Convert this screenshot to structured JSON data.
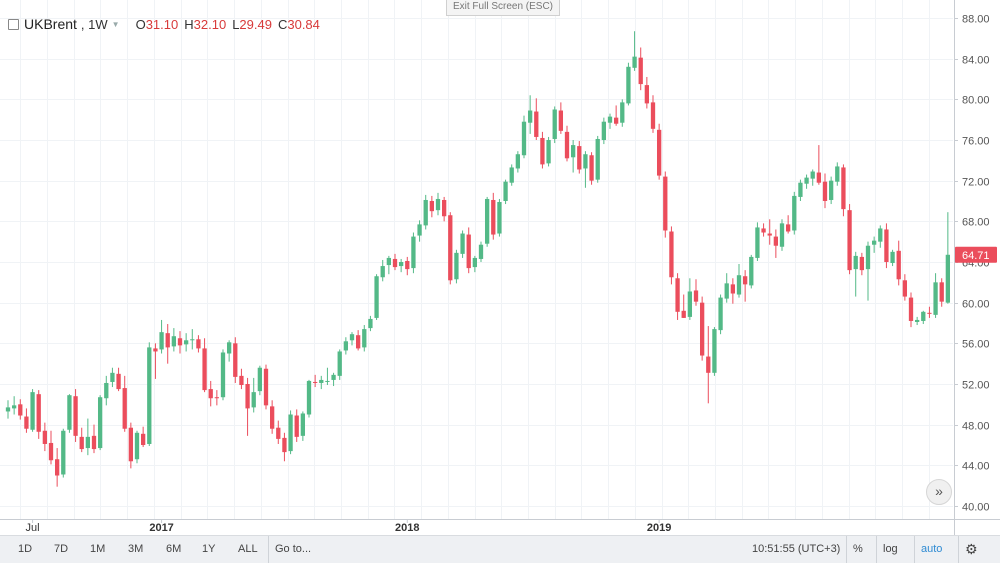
{
  "legend": {
    "symbol": "UKBrent",
    "timeframe": ", 1W",
    "open_label": "O",
    "open_value": "31.10",
    "high_label": "H",
    "high_value": "32.10",
    "low_label": "L",
    "low_value": "29.49",
    "close_label": "C",
    "close_value": "30.84"
  },
  "exit_fullscreen": "Exit Full Screen (ESC)",
  "last_price_label": "64.71",
  "toolbar": {
    "ranges": [
      "1D",
      "7D",
      "1M",
      "3M",
      "6M",
      "1Y",
      "ALL"
    ],
    "goto": "Go to...",
    "time": "10:51:55 (UTC+3)",
    "percent": "%",
    "log": "log",
    "auto": "auto",
    "settings_icon": "gear-icon"
  },
  "nav_icon": "chevrons-right-icon",
  "colors": {
    "up": "#53b987",
    "down": "#eb4d5c",
    "grid": "#f0f3f6",
    "last_price_bg": "#eb4d5c"
  },
  "chart_data": {
    "type": "candlestick",
    "y_ticks": [
      "88.00",
      "84.00",
      "80.00",
      "76.00",
      "72.00",
      "68.00",
      "64.00",
      "60.00",
      "56.00",
      "52.00",
      "48.00",
      "44.00",
      "40.00"
    ],
    "ylim": [
      39.5,
      89.5
    ],
    "x_labels": [
      {
        "label": "Jul",
        "index": 4
      },
      {
        "label": "2017",
        "index": 25
      },
      {
        "label": "2018",
        "index": 65
      },
      {
        "label": "2019",
        "index": 106
      }
    ],
    "last_price": 64.71,
    "ohlc": [
      [
        49.3,
        50.4,
        48.6,
        49.7
      ],
      [
        49.6,
        50.8,
        49.0,
        49.9
      ],
      [
        50.0,
        50.5,
        48.5,
        48.9
      ],
      [
        48.8,
        49.6,
        47.2,
        47.6
      ],
      [
        47.5,
        51.5,
        47.3,
        51.2
      ],
      [
        51.0,
        51.4,
        46.6,
        47.3
      ],
      [
        47.4,
        48.2,
        45.4,
        46.1
      ],
      [
        46.2,
        47.4,
        44.1,
        44.5
      ],
      [
        44.6,
        45.7,
        41.9,
        43.0
      ],
      [
        43.1,
        47.6,
        42.8,
        47.4
      ],
      [
        47.5,
        51.0,
        47.2,
        50.9
      ],
      [
        50.8,
        51.5,
        46.3,
        46.9
      ],
      [
        46.8,
        47.7,
        45.3,
        45.6
      ],
      [
        45.7,
        48.6,
        45.0,
        46.8
      ],
      [
        46.9,
        48.0,
        45.2,
        45.6
      ],
      [
        45.7,
        50.9,
        45.5,
        50.7
      ],
      [
        50.6,
        52.8,
        49.9,
        52.1
      ],
      [
        52.2,
        53.6,
        51.7,
        53.1
      ],
      [
        53.0,
        53.6,
        51.3,
        51.5
      ],
      [
        51.6,
        52.8,
        47.3,
        47.6
      ],
      [
        47.7,
        48.2,
        43.7,
        44.4
      ],
      [
        44.6,
        47.4,
        44.2,
        47.2
      ],
      [
        47.1,
        47.8,
        45.8,
        46.0
      ],
      [
        46.1,
        56.1,
        45.9,
        55.6
      ],
      [
        55.5,
        56.0,
        52.5,
        55.2
      ],
      [
        55.4,
        58.3,
        55.0,
        57.1
      ],
      [
        57.0,
        57.9,
        54.0,
        55.6
      ],
      [
        55.7,
        57.5,
        55.2,
        56.7
      ],
      [
        56.5,
        57.2,
        55.0,
        55.8
      ],
      [
        55.9,
        57.0,
        55.2,
        56.3
      ],
      [
        56.3,
        57.4,
        55.4,
        56.4
      ],
      [
        56.4,
        56.8,
        55.1,
        55.5
      ],
      [
        55.5,
        56.5,
        51.2,
        51.4
      ],
      [
        51.5,
        52.3,
        49.8,
        50.6
      ],
      [
        50.7,
        51.4,
        49.9,
        50.6
      ],
      [
        50.7,
        55.4,
        50.4,
        55.1
      ],
      [
        55.0,
        56.3,
        54.2,
        56.1
      ],
      [
        56.0,
        56.6,
        52.1,
        52.7
      ],
      [
        52.8,
        53.5,
        51.5,
        51.9
      ],
      [
        52.0,
        52.6,
        46.9,
        49.6
      ],
      [
        49.7,
        52.6,
        49.2,
        51.2
      ],
      [
        51.3,
        53.8,
        50.9,
        53.6
      ],
      [
        53.5,
        53.9,
        49.5,
        49.9
      ],
      [
        49.8,
        50.4,
        47.1,
        47.6
      ],
      [
        47.7,
        48.4,
        46.1,
        46.6
      ],
      [
        46.7,
        47.2,
        44.4,
        45.3
      ],
      [
        45.4,
        49.4,
        45.1,
        49.0
      ],
      [
        48.9,
        49.5,
        46.3,
        46.8
      ],
      [
        46.9,
        49.3,
        46.4,
        49.1
      ],
      [
        49.0,
        52.4,
        48.7,
        52.3
      ],
      [
        52.2,
        52.9,
        51.7,
        52.1
      ],
      [
        52.1,
        52.8,
        51.5,
        52.4
      ],
      [
        52.3,
        53.6,
        51.9,
        52.3
      ],
      [
        52.4,
        53.1,
        51.8,
        52.9
      ],
      [
        52.8,
        55.4,
        52.4,
        55.2
      ],
      [
        55.3,
        56.6,
        54.9,
        56.2
      ],
      [
        56.3,
        57.1,
        55.8,
        56.9
      ],
      [
        56.8,
        57.3,
        55.3,
        55.5
      ],
      [
        55.6,
        57.8,
        55.2,
        57.4
      ],
      [
        57.5,
        58.7,
        57.2,
        58.4
      ],
      [
        58.5,
        62.8,
        58.3,
        62.6
      ],
      [
        62.5,
        64.2,
        62.1,
        63.6
      ],
      [
        63.7,
        64.6,
        62.8,
        64.4
      ],
      [
        64.3,
        64.8,
        63.2,
        63.5
      ],
      [
        63.6,
        64.3,
        63.0,
        64.0
      ],
      [
        64.1,
        64.5,
        62.7,
        63.3
      ],
      [
        63.4,
        66.9,
        62.9,
        66.5
      ],
      [
        66.6,
        68.1,
        66.0,
        67.7
      ],
      [
        67.6,
        70.6,
        67.2,
        70.1
      ],
      [
        70.0,
        70.5,
        68.4,
        69.0
      ],
      [
        69.1,
        70.8,
        68.6,
        70.2
      ],
      [
        70.1,
        70.4,
        68.0,
        68.5
      ],
      [
        68.6,
        68.9,
        61.8,
        62.2
      ],
      [
        62.3,
        65.2,
        61.9,
        64.9
      ],
      [
        64.8,
        67.1,
        64.4,
        66.8
      ],
      [
        66.7,
        67.4,
        62.9,
        63.4
      ],
      [
        63.5,
        64.6,
        63.0,
        64.4
      ],
      [
        64.3,
        66.0,
        64.0,
        65.7
      ],
      [
        65.8,
        70.4,
        65.5,
        70.2
      ],
      [
        70.1,
        70.8,
        66.2,
        66.7
      ],
      [
        66.8,
        70.2,
        66.5,
        69.9
      ],
      [
        70.0,
        72.1,
        69.7,
        71.9
      ],
      [
        71.8,
        73.6,
        71.5,
        73.3
      ],
      [
        73.2,
        74.9,
        72.8,
        74.6
      ],
      [
        74.5,
        78.4,
        74.2,
        77.8
      ],
      [
        77.7,
        80.4,
        76.6,
        78.9
      ],
      [
        78.8,
        80.1,
        76.0,
        76.3
      ],
      [
        76.2,
        76.8,
        73.2,
        73.6
      ],
      [
        73.7,
        76.3,
        73.4,
        76.0
      ],
      [
        76.1,
        79.3,
        75.7,
        79.0
      ],
      [
        78.9,
        79.7,
        76.6,
        76.9
      ],
      [
        76.8,
        77.4,
        73.9,
        74.2
      ],
      [
        74.3,
        76.0,
        72.8,
        75.5
      ],
      [
        75.4,
        75.9,
        72.7,
        73.1
      ],
      [
        73.2,
        74.9,
        71.3,
        74.6
      ],
      [
        74.5,
        74.8,
        71.6,
        72.0
      ],
      [
        72.1,
        76.4,
        71.8,
        76.1
      ],
      [
        76.0,
        78.2,
        75.6,
        77.8
      ],
      [
        77.7,
        78.6,
        77.1,
        78.3
      ],
      [
        78.2,
        79.4,
        77.4,
        77.6
      ],
      [
        77.7,
        80.0,
        77.3,
        79.7
      ],
      [
        79.6,
        83.6,
        79.4,
        83.2
      ],
      [
        83.1,
        86.7,
        82.8,
        84.2
      ],
      [
        84.1,
        85.1,
        80.9,
        81.5
      ],
      [
        81.4,
        82.2,
        79.1,
        79.6
      ],
      [
        79.7,
        80.4,
        76.7,
        77.1
      ],
      [
        77.0,
        77.6,
        72.1,
        72.5
      ],
      [
        72.4,
        72.9,
        66.4,
        67.1
      ],
      [
        67.0,
        67.5,
        61.8,
        62.5
      ],
      [
        62.4,
        62.9,
        58.3,
        59.1
      ],
      [
        59.2,
        60.8,
        58.5,
        58.5
      ],
      [
        58.6,
        62.4,
        58.3,
        61.1
      ],
      [
        61.2,
        62.3,
        59.7,
        60.1
      ],
      [
        60.0,
        60.6,
        54.3,
        54.8
      ],
      [
        54.7,
        57.7,
        50.1,
        53.1
      ],
      [
        53.1,
        57.6,
        52.8,
        57.4
      ],
      [
        57.3,
        60.8,
        56.9,
        60.5
      ],
      [
        60.4,
        62.9,
        60.0,
        61.9
      ],
      [
        61.8,
        62.4,
        59.9,
        60.9
      ],
      [
        60.8,
        63.8,
        60.5,
        62.7
      ],
      [
        62.6,
        63.2,
        60.1,
        61.8
      ],
      [
        61.7,
        64.7,
        61.4,
        64.5
      ],
      [
        64.4,
        67.9,
        64.1,
        67.4
      ],
      [
        67.3,
        67.8,
        66.5,
        66.9
      ],
      [
        66.8,
        68.2,
        65.7,
        66.6
      ],
      [
        66.5,
        67.2,
        64.4,
        65.6
      ],
      [
        65.5,
        68.2,
        65.1,
        67.8
      ],
      [
        67.7,
        68.6,
        66.8,
        67.0
      ],
      [
        67.1,
        70.9,
        66.7,
        70.5
      ],
      [
        70.4,
        72.1,
        70.0,
        71.8
      ],
      [
        71.7,
        72.6,
        71.2,
        72.3
      ],
      [
        72.2,
        73.1,
        71.5,
        72.9
      ],
      [
        72.8,
        75.5,
        71.6,
        71.8
      ],
      [
        71.9,
        72.7,
        69.3,
        70.0
      ],
      [
        70.1,
        72.4,
        69.7,
        72.0
      ],
      [
        71.9,
        73.8,
        71.5,
        73.4
      ],
      [
        73.3,
        73.6,
        68.5,
        69.2
      ],
      [
        69.1,
        69.7,
        62.8,
        63.2
      ],
      [
        63.3,
        65.0,
        60.6,
        64.6
      ],
      [
        64.5,
        64.9,
        62.7,
        63.2
      ],
      [
        63.3,
        66.0,
        60.2,
        65.6
      ],
      [
        65.7,
        66.5,
        64.9,
        66.1
      ],
      [
        66.0,
        67.6,
        65.4,
        67.3
      ],
      [
        67.2,
        67.8,
        63.4,
        64.0
      ],
      [
        63.9,
        65.2,
        63.6,
        65.0
      ],
      [
        65.1,
        66.1,
        61.7,
        62.3
      ],
      [
        62.2,
        62.8,
        60.2,
        60.6
      ],
      [
        60.5,
        61.0,
        57.6,
        58.2
      ],
      [
        58.1,
        58.6,
        57.8,
        58.3
      ],
      [
        58.2,
        59.2,
        57.9,
        59.1
      ],
      [
        59.0,
        59.6,
        58.5,
        58.9
      ],
      [
        58.8,
        62.9,
        58.5,
        62.0
      ],
      [
        62.0,
        62.4,
        59.6,
        60.1
      ],
      [
        60.0,
        68.9,
        59.9,
        64.71
      ]
    ]
  }
}
